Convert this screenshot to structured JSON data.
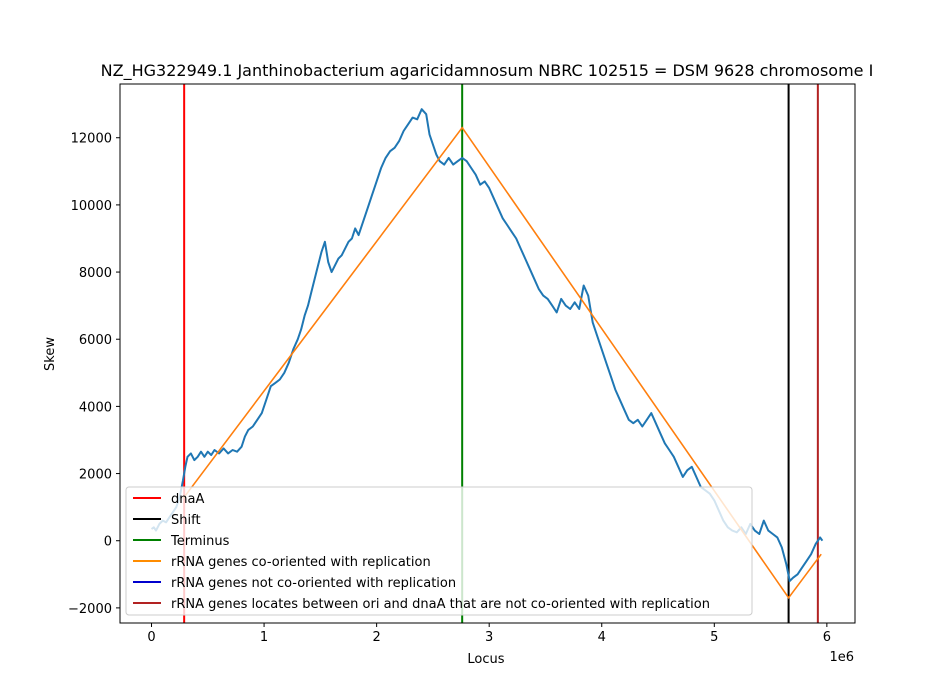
{
  "chart_data": {
    "type": "line",
    "title": "NZ_HG322949.1 Janthinobacterium agaricidamnosum NBRC 102515 = DSM 9628 chromosome I",
    "xlabel": "Locus",
    "ylabel": "Skew",
    "x_offset_label": "1e6",
    "xlim": [
      -280000,
      6250000
    ],
    "ylim": [
      -2450,
      13600
    ],
    "x_ticks": [
      0,
      1000000,
      2000000,
      3000000,
      4000000,
      5000000,
      6000000
    ],
    "x_tick_labels": [
      "0",
      "1",
      "2",
      "3",
      "4",
      "5",
      "6"
    ],
    "y_ticks": [
      -2000,
      0,
      2000,
      4000,
      6000,
      8000,
      10000,
      12000
    ],
    "y_tick_labels": [
      "−2000",
      "0",
      "2000",
      "4000",
      "6000",
      "8000",
      "10000",
      "12000"
    ],
    "grid": false,
    "legend_position": "lower-left",
    "skew_series": {
      "color": "#1f77b4",
      "points": [
        [
          0,
          350
        ],
        [
          20000,
          400
        ],
        [
          40000,
          300
        ],
        [
          70000,
          500
        ],
        [
          100000,
          600
        ],
        [
          130000,
          550
        ],
        [
          160000,
          700
        ],
        [
          190000,
          850
        ],
        [
          220000,
          1000
        ],
        [
          250000,
          1300
        ],
        [
          280000,
          1800
        ],
        [
          300000,
          2200
        ],
        [
          320000,
          2500
        ],
        [
          350000,
          2600
        ],
        [
          380000,
          2400
        ],
        [
          410000,
          2500
        ],
        [
          440000,
          2650
        ],
        [
          470000,
          2500
        ],
        [
          500000,
          2650
        ],
        [
          530000,
          2550
        ],
        [
          560000,
          2700
        ],
        [
          600000,
          2600
        ],
        [
          640000,
          2750
        ],
        [
          680000,
          2600
        ],
        [
          720000,
          2700
        ],
        [
          760000,
          2650
        ],
        [
          800000,
          2800
        ],
        [
          830000,
          3100
        ],
        [
          860000,
          3300
        ],
        [
          900000,
          3400
        ],
        [
          940000,
          3600
        ],
        [
          980000,
          3800
        ],
        [
          1020000,
          4200
        ],
        [
          1060000,
          4600
        ],
        [
          1100000,
          4700
        ],
        [
          1140000,
          4800
        ],
        [
          1180000,
          5000
        ],
        [
          1220000,
          5300
        ],
        [
          1260000,
          5700
        ],
        [
          1300000,
          6000
        ],
        [
          1330000,
          6300
        ],
        [
          1360000,
          6700
        ],
        [
          1390000,
          7000
        ],
        [
          1420000,
          7400
        ],
        [
          1450000,
          7800
        ],
        [
          1480000,
          8200
        ],
        [
          1510000,
          8600
        ],
        [
          1540000,
          8900
        ],
        [
          1570000,
          8300
        ],
        [
          1600000,
          8000
        ],
        [
          1630000,
          8200
        ],
        [
          1660000,
          8400
        ],
        [
          1690000,
          8500
        ],
        [
          1720000,
          8700
        ],
        [
          1750000,
          8900
        ],
        [
          1780000,
          9000
        ],
        [
          1810000,
          9300
        ],
        [
          1840000,
          9100
        ],
        [
          1880000,
          9500
        ],
        [
          1920000,
          9900
        ],
        [
          1960000,
          10300
        ],
        [
          2000000,
          10700
        ],
        [
          2040000,
          11100
        ],
        [
          2080000,
          11400
        ],
        [
          2120000,
          11600
        ],
        [
          2160000,
          11700
        ],
        [
          2200000,
          11900
        ],
        [
          2240000,
          12200
        ],
        [
          2280000,
          12400
        ],
        [
          2320000,
          12600
        ],
        [
          2360000,
          12550
        ],
        [
          2400000,
          12850
        ],
        [
          2440000,
          12700
        ],
        [
          2470000,
          12100
        ],
        [
          2500000,
          11800
        ],
        [
          2530000,
          11500
        ],
        [
          2560000,
          11300
        ],
        [
          2600000,
          11200
        ],
        [
          2640000,
          11400
        ],
        [
          2680000,
          11200
        ],
        [
          2720000,
          11300
        ],
        [
          2760000,
          11400
        ],
        [
          2800000,
          11300
        ],
        [
          2840000,
          11100
        ],
        [
          2880000,
          10900
        ],
        [
          2920000,
          10600
        ],
        [
          2960000,
          10700
        ],
        [
          3000000,
          10500
        ],
        [
          3040000,
          10200
        ],
        [
          3080000,
          9900
        ],
        [
          3120000,
          9600
        ],
        [
          3160000,
          9400
        ],
        [
          3200000,
          9200
        ],
        [
          3240000,
          9000
        ],
        [
          3280000,
          8700
        ],
        [
          3320000,
          8400
        ],
        [
          3360000,
          8100
        ],
        [
          3400000,
          7800
        ],
        [
          3440000,
          7500
        ],
        [
          3480000,
          7300
        ],
        [
          3520000,
          7200
        ],
        [
          3560000,
          7000
        ],
        [
          3600000,
          6800
        ],
        [
          3640000,
          7200
        ],
        [
          3680000,
          7000
        ],
        [
          3720000,
          6900
        ],
        [
          3760000,
          7100
        ],
        [
          3800000,
          6900
        ],
        [
          3840000,
          7600
        ],
        [
          3880000,
          7300
        ],
        [
          3920000,
          6500
        ],
        [
          3960000,
          6100
        ],
        [
          4000000,
          5700
        ],
        [
          4040000,
          5300
        ],
        [
          4080000,
          4900
        ],
        [
          4120000,
          4500
        ],
        [
          4160000,
          4200
        ],
        [
          4200000,
          3900
        ],
        [
          4240000,
          3600
        ],
        [
          4280000,
          3500
        ],
        [
          4320000,
          3600
        ],
        [
          4360000,
          3400
        ],
        [
          4400000,
          3600
        ],
        [
          4440000,
          3800
        ],
        [
          4480000,
          3500
        ],
        [
          4520000,
          3200
        ],
        [
          4560000,
          2900
        ],
        [
          4600000,
          2700
        ],
        [
          4640000,
          2500
        ],
        [
          4680000,
          2200
        ],
        [
          4720000,
          1900
        ],
        [
          4760000,
          2100
        ],
        [
          4800000,
          2200
        ],
        [
          4840000,
          1900
        ],
        [
          4880000,
          1600
        ],
        [
          4920000,
          1500
        ],
        [
          4960000,
          1400
        ],
        [
          5000000,
          1200
        ],
        [
          5040000,
          900
        ],
        [
          5080000,
          600
        ],
        [
          5120000,
          400
        ],
        [
          5160000,
          300
        ],
        [
          5200000,
          250
        ],
        [
          5240000,
          400
        ],
        [
          5280000,
          200
        ],
        [
          5320000,
          500
        ],
        [
          5360000,
          300
        ],
        [
          5400000,
          200
        ],
        [
          5440000,
          600
        ],
        [
          5480000,
          300
        ],
        [
          5520000,
          200
        ],
        [
          5560000,
          100
        ],
        [
          5600000,
          -200
        ],
        [
          5640000,
          -700
        ],
        [
          5670000,
          -1200
        ],
        [
          5700000,
          -1100
        ],
        [
          5740000,
          -1000
        ],
        [
          5780000,
          -800
        ],
        [
          5820000,
          -600
        ],
        [
          5860000,
          -400
        ],
        [
          5900000,
          -100
        ],
        [
          5940000,
          100
        ],
        [
          5960000,
          0
        ]
      ]
    },
    "fit_line": {
      "color": "#ff7f0e",
      "points": [
        [
          280000,
          1250
        ],
        [
          2760000,
          12300
        ],
        [
          5660000,
          -1700
        ],
        [
          5950000,
          -400
        ]
      ]
    },
    "vertical_lines": [
      {
        "x": 290000,
        "color": "#ff0000"
      },
      {
        "x": 2760000,
        "color": "#008000"
      },
      {
        "x": 5660000,
        "color": "#000000"
      },
      {
        "x": 5920000,
        "color": "#b22222"
      }
    ],
    "legend": [
      {
        "label": "dnaA",
        "color": "#ff0000"
      },
      {
        "label": "Shift",
        "color": "#000000"
      },
      {
        "label": "Terminus",
        "color": "#008000"
      },
      {
        "label": "rRNA genes co-oriented with replication",
        "color": "#ff8c00"
      },
      {
        "label": "rRNA genes not co-oriented with replication",
        "color": "#0000cd"
      },
      {
        "label": "rRNA genes locates between ori and dnaA that are not co-oriented with replication",
        "color": "#b22222"
      }
    ]
  }
}
